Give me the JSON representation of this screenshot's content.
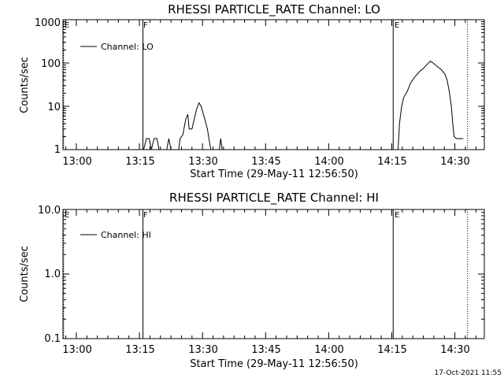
{
  "footer": {
    "timestamp": "17-Oct-2021 11:55"
  },
  "chart_data": [
    {
      "type": "line",
      "title": "RHESSI PARTICLE_RATE Channel: LO",
      "xlabel": "Start Time (29-May-11 12:56:50)",
      "ylabel": "Counts/sec",
      "ylog": true,
      "ylim": [
        1,
        1000
      ],
      "xlim": [
        "12:56:50",
        "14:37:00"
      ],
      "xticks": [
        "13:00",
        "13:15",
        "13:30",
        "13:45",
        "14:00",
        "14:15",
        "14:30"
      ],
      "yticks": [
        "1",
        "10",
        "100",
        "1000"
      ],
      "legend": {
        "position": "top-left",
        "label": "Channel: LO"
      },
      "markers": [
        {
          "label": "E",
          "x": "12:57:00",
          "style": "dotted"
        },
        {
          "label": "F",
          "x": "13:15:50",
          "style": "solid"
        },
        {
          "label": "E",
          "x": "14:15:20",
          "style": "solid"
        },
        {
          "label": "",
          "x": "14:33:00",
          "style": "dotted"
        }
      ],
      "series": [
        {
          "name": "Channel: LO",
          "segments": [
            [
              [
                "13:16:00",
                1
              ],
              [
                "13:16:40",
                1.8
              ],
              [
                "13:17:20",
                1.8
              ],
              [
                "13:17:50",
                1
              ],
              [
                "13:18:30",
                1.8
              ],
              [
                "13:19:10",
                1.8
              ],
              [
                "13:19:40",
                1
              ]
            ],
            [
              [
                "13:21:30",
                1
              ],
              [
                "13:22:00",
                1.8
              ],
              [
                "13:22:30",
                1
              ]
            ],
            [
              [
                "13:24:20",
                1
              ],
              [
                "13:24:40",
                1.8
              ],
              [
                "13:25:20",
                2.2
              ],
              [
                "13:26:00",
                5
              ],
              [
                "13:26:30",
                6.5
              ],
              [
                "13:26:50",
                3
              ],
              [
                "13:27:30",
                3
              ],
              [
                "13:28:00",
                5
              ],
              [
                "13:28:40",
                9
              ],
              [
                "13:29:10",
                12
              ],
              [
                "13:29:40",
                10
              ],
              [
                "13:30:20",
                6
              ],
              [
                "13:31:10",
                3
              ],
              [
                "13:31:40",
                1.5
              ],
              [
                "13:32:00",
                1
              ]
            ],
            [
              [
                "13:34:00",
                1
              ],
              [
                "13:34:20",
                1.8
              ],
              [
                "13:34:40",
                1
              ]
            ],
            [
              [
                "14:16:30",
                1
              ],
              [
                "14:16:50",
                4
              ],
              [
                "14:17:20",
                10
              ],
              [
                "14:17:50",
                16
              ],
              [
                "14:18:40",
                22
              ],
              [
                "14:19:30",
                35
              ],
              [
                "14:20:30",
                48
              ],
              [
                "14:21:30",
                62
              ],
              [
                "14:22:30",
                75
              ],
              [
                "14:23:30",
                95
              ],
              [
                "14:24:10",
                110
              ],
              [
                "14:24:50",
                100
              ],
              [
                "14:25:40",
                85
              ],
              [
                "14:26:40",
                72
              ],
              [
                "14:27:40",
                55
              ],
              [
                "14:28:10",
                40
              ],
              [
                "14:28:40",
                22
              ],
              [
                "14:29:10",
                10
              ],
              [
                "14:29:30",
                4
              ],
              [
                "14:29:50",
                2
              ],
              [
                "14:30:20",
                1.8
              ],
              [
                "14:32:00",
                1.8
              ]
            ]
          ]
        }
      ]
    },
    {
      "type": "line",
      "title": "RHESSI PARTICLE_RATE Channel: HI",
      "xlabel": "Start Time (29-May-11 12:56:50)",
      "ylabel": "Counts/sec",
      "ylog": true,
      "ylim": [
        0.1,
        10
      ],
      "xlim": [
        "12:56:50",
        "14:37:00"
      ],
      "xticks": [
        "13:00",
        "13:15",
        "13:30",
        "13:45",
        "14:00",
        "14:15",
        "14:30"
      ],
      "yticks": [
        "0.1",
        "1.0",
        "10.0"
      ],
      "legend": {
        "position": "top-left",
        "label": "Channel: HI"
      },
      "markers": [
        {
          "label": "E",
          "x": "12:57:00",
          "style": "dotted"
        },
        {
          "label": "F",
          "x": "13:15:50",
          "style": "solid"
        },
        {
          "label": "E",
          "x": "14:15:20",
          "style": "solid"
        },
        {
          "label": "",
          "x": "14:33:00",
          "style": "dotted"
        }
      ],
      "series": [
        {
          "name": "Channel: HI",
          "segments": []
        }
      ]
    }
  ]
}
